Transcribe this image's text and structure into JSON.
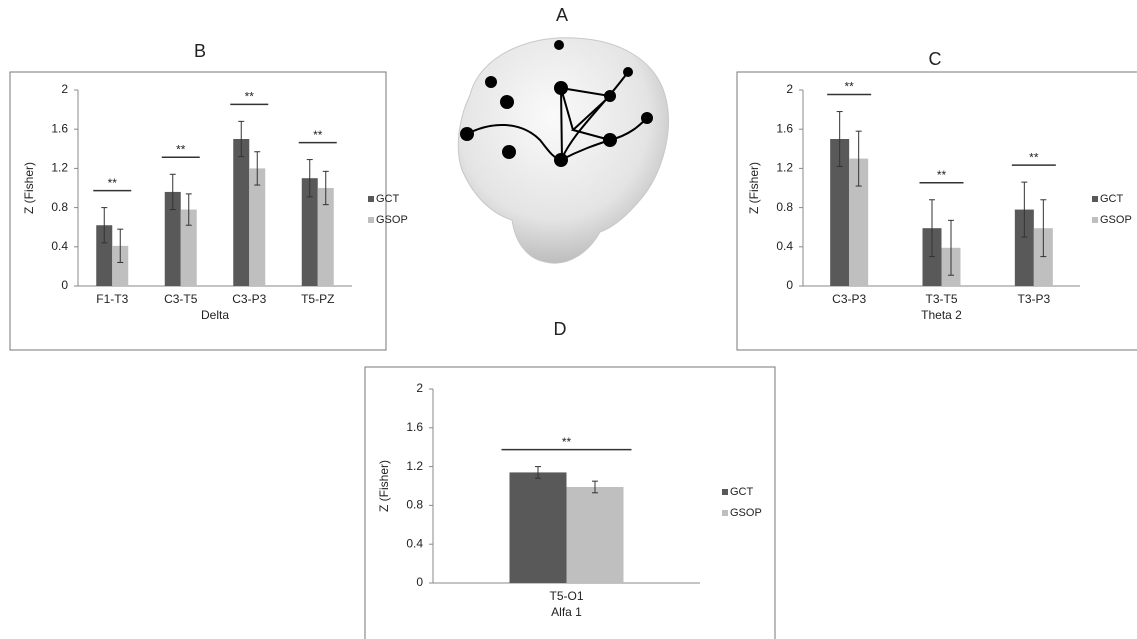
{
  "image_label": "A",
  "chart_data": [
    {
      "type": "bar",
      "panel_label": "B",
      "x_label": "Delta",
      "y_label": "Z (Fisher)",
      "categories": [
        "F1-T3",
        "C3-T5",
        "C3-P3",
        "T5-PZ"
      ],
      "series": [
        {
          "name": "GCT",
          "color": "#595959",
          "values": [
            0.62,
            0.96,
            1.5,
            1.1
          ],
          "errors": [
            0.18,
            0.18,
            0.18,
            0.19
          ]
        },
        {
          "name": "GSOP",
          "color": "#bfbfbf",
          "values": [
            0.41,
            0.78,
            1.2,
            1.0
          ],
          "errors": [
            0.17,
            0.16,
            0.17,
            0.17
          ]
        }
      ],
      "annotations": [
        "**",
        "**",
        "**",
        "**"
      ],
      "ylim": [
        0,
        2
      ],
      "yticks": [
        0,
        0.4,
        0.8,
        1.2,
        1.6,
        2
      ],
      "grid": false
    },
    {
      "type": "bar",
      "panel_label": "C",
      "x_label": "Theta 2",
      "y_label": "Z (Fisher)",
      "categories": [
        "C3-P3",
        "T3-T5",
        "T3-P3"
      ],
      "series": [
        {
          "name": "GCT",
          "color": "#595959",
          "values": [
            1.5,
            0.59,
            0.78
          ],
          "errors": [
            0.28,
            0.29,
            0.28
          ]
        },
        {
          "name": "GSOP",
          "color": "#bfbfbf",
          "values": [
            1.3,
            0.39,
            0.59
          ],
          "errors": [
            0.28,
            0.28,
            0.29
          ]
        }
      ],
      "annotations": [
        "**",
        "**",
        "**"
      ],
      "ylim": [
        0,
        2
      ],
      "yticks": [
        0,
        0.4,
        0.8,
        1.2,
        1.6,
        2
      ],
      "grid": false
    },
    {
      "type": "bar",
      "panel_label": "D",
      "x_label": "Alfa 1",
      "y_label": "Z (Fisher)",
      "categories": [
        "T5-O1"
      ],
      "series": [
        {
          "name": "GCT",
          "color": "#595959",
          "values": [
            1.14
          ],
          "errors": [
            0.06
          ]
        },
        {
          "name": "GSOP",
          "color": "#bfbfbf",
          "values": [
            0.99
          ],
          "errors": [
            0.06
          ]
        }
      ],
      "annotations": [
        "**"
      ],
      "ylim": [
        0,
        2
      ],
      "yticks": [
        0,
        0.4,
        0.8,
        1.2,
        1.6,
        2
      ],
      "grid": false
    }
  ]
}
